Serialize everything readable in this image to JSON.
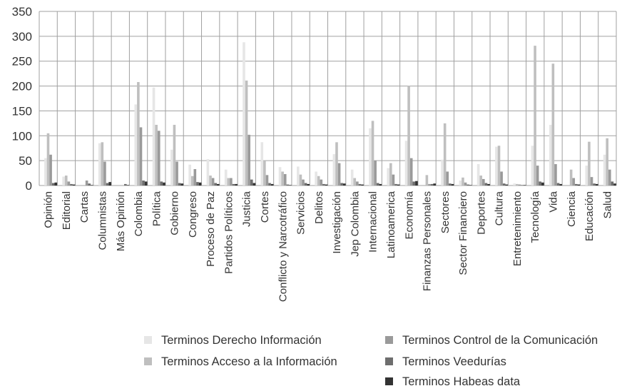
{
  "chart_data": {
    "type": "bar",
    "ylim": [
      0,
      350
    ],
    "yticks": [
      0,
      50,
      100,
      150,
      200,
      250,
      300,
      350
    ],
    "grid": true,
    "legend_position": "bottom",
    "categories": [
      "Opinión",
      "Editorial",
      "Cartas",
      "Columnistas",
      "Más Opinión",
      "Colombia",
      "Política",
      "Gobierno",
      "Congreso",
      "Proceso de Paz",
      "Partidos Políticos",
      "Justicia",
      "Cortes",
      "Conflicto y Narcotráfico",
      "Servicios",
      "Delitos",
      "Investigación",
      "Jep Colombia",
      "Internacional",
      "Latinoamerica",
      "Economía",
      "Finanzas Personales",
      "Sectores",
      "Sector Financiero",
      "Deportes",
      "Cultura",
      "Entretenimiento",
      "Tecnología",
      "Vida",
      "Ciencia",
      "Educación",
      "Salud"
    ],
    "series": [
      {
        "name": "Terminos Derecho Información",
        "color": "#e6e6e6",
        "values": [
          55,
          18,
          0,
          85,
          0,
          163,
          197,
          72,
          42,
          53,
          32,
          288,
          87,
          37,
          38,
          28,
          63,
          32,
          115,
          35,
          90,
          0,
          52,
          10,
          43,
          78,
          4,
          80,
          122,
          0,
          40,
          62
        ]
      },
      {
        "name": "Terminos Acceso a la Información",
        "color": "#bfbfbf",
        "values": [
          105,
          20,
          0,
          87,
          0,
          208,
          122,
          122,
          19,
          20,
          15,
          211,
          50,
          28,
          22,
          19,
          87,
          15,
          130,
          45,
          200,
          21,
          125,
          16,
          20,
          80,
          3,
          281,
          245,
          32,
          88,
          95
        ]
      },
      {
        "name": "Terminos Control de la Comunicación",
        "color": "#9a9a9a",
        "values": [
          62,
          8,
          10,
          48,
          0,
          117,
          110,
          48,
          33,
          15,
          15,
          102,
          21,
          23,
          12,
          12,
          45,
          8,
          50,
          22,
          55,
          3,
          28,
          6,
          13,
          28,
          2,
          40,
          43,
          15,
          17,
          32
        ]
      },
      {
        "name": "Terminos Veedurías",
        "color": "#6e6e6e",
        "values": [
          5,
          3,
          4,
          5,
          3,
          10,
          8,
          5,
          7,
          5,
          3,
          12,
          5,
          2,
          5,
          3,
          5,
          3,
          5,
          3,
          8,
          3,
          4,
          2,
          5,
          4,
          1,
          8,
          5,
          3,
          4,
          8
        ]
      },
      {
        "name": "Terminos Habeas data",
        "color": "#333333",
        "values": [
          6,
          2,
          1,
          7,
          1,
          8,
          6,
          4,
          6,
          3,
          3,
          5,
          3,
          1,
          3,
          2,
          4,
          2,
          3,
          2,
          9,
          4,
          3,
          1,
          3,
          2,
          1,
          6,
          3,
          2,
          3,
          4
        ]
      }
    ]
  }
}
